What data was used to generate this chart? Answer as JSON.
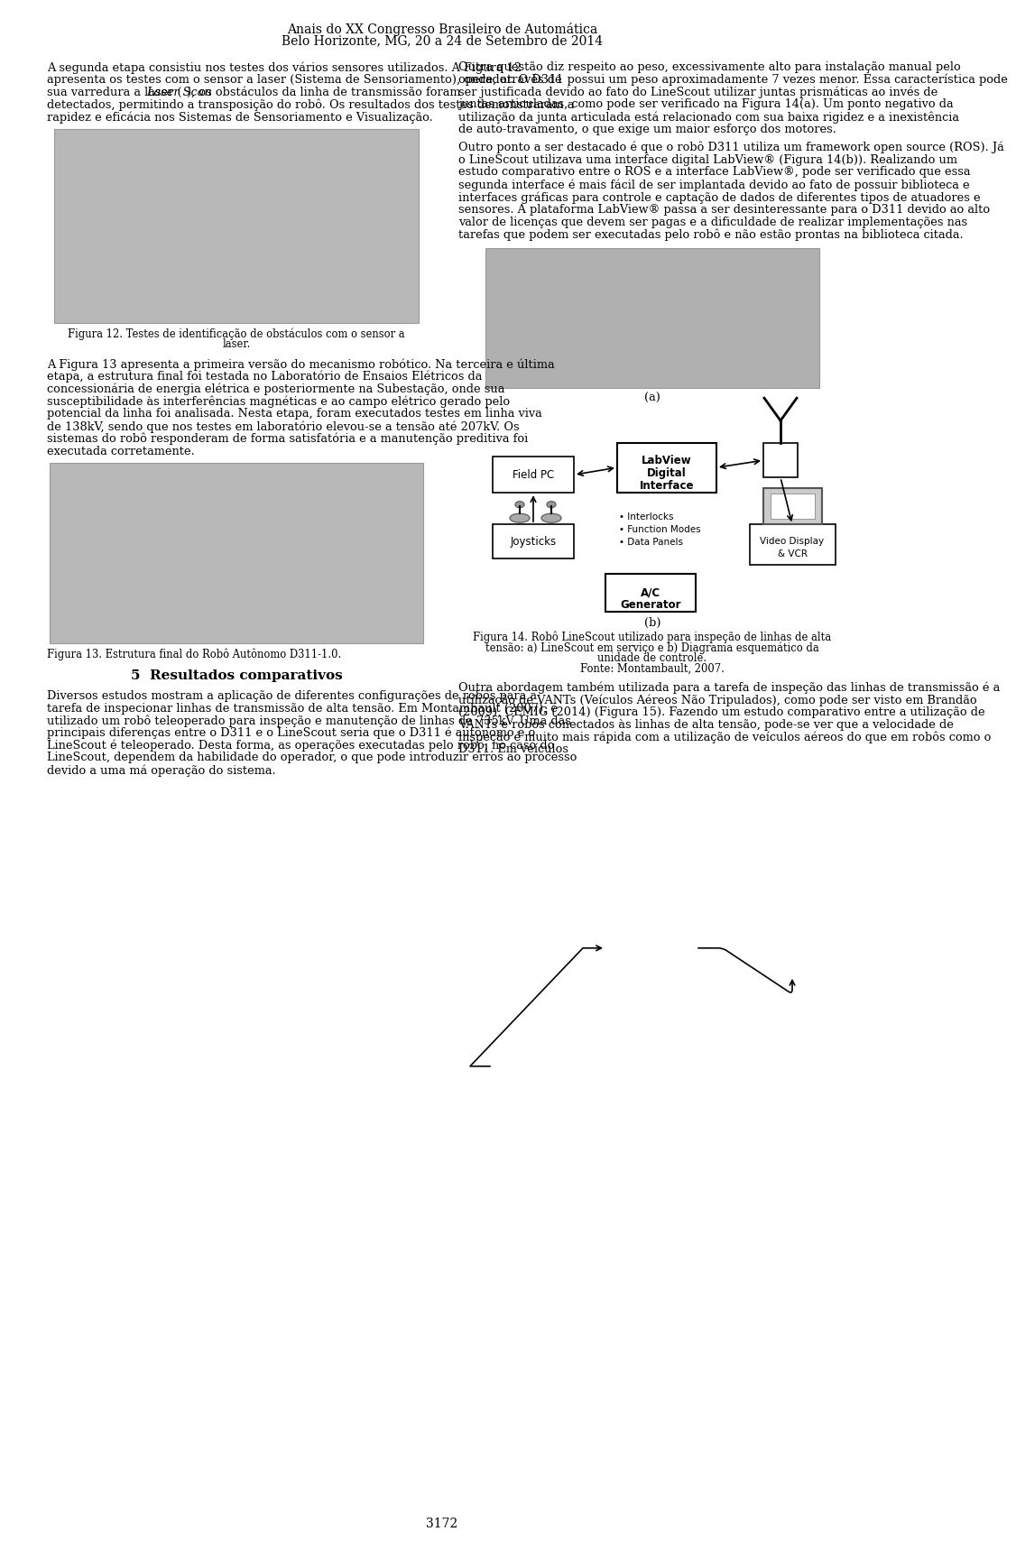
{
  "title_line1": "Anais do XX Congresso Brasileiro de Automática",
  "title_line2": "Belo Horizonte, MG, 20 a 24 de Setembro de 2014",
  "page_number": "3172",
  "background_color": "#ffffff",
  "col1_para1_parts": [
    {
      "text": "A segunda etapa consistiu nos testes dos vários sensores utilizados. A Figura 12 apresenta os testes com o sensor a laser (Sistema de Sensoriamento), onde, através de sua varredura a laser (",
      "italic": false
    },
    {
      "text": "Laser Scan",
      "italic": true
    },
    {
      "text": "), os obstáculos da linha de transmissão foram detectados, permitindo a transposição do robô. Os resultados dos testes demonstraram a rapidez e eficácia nos Sistemas de Sensoriamento e Visualização.",
      "italic": false
    }
  ],
  "fig12_caption_line1": "Figura 12. Testes de identificação de obstáculos com o sensor a",
  "fig12_caption_line2": "laser.",
  "col1_para2": "A Figura 13 apresenta a primeira versão do mecanismo robótico. Na terceira e última etapa, a estrutura final foi testada no Laboratório de Ensaios Elétricos da concessionária de energia elétrica e posteriormente na Subestação, onde sua susceptibilidade às interferências magnéticas e ao campo elétrico gerado pelo potencial da linha foi analisada. Nesta etapa, foram executados testes em linha viva de 138kV, sendo que nos testes em laboratório elevou-se a tensão até 207kV. Os sistemas do robô responderam de forma satisfatória e a manutenção preditiva foi executada corretamente.",
  "fig13_caption": "Figura 13. Estrutura final do Robô Autônomo D311-1.0.",
  "section5_title": "5  Resultados comparativos",
  "col1_para3": "Diversos estudos mostram a aplicação de diferentes configurações de robôs para a tarefa de inspecionar linhas de transmissão de alta tensão. Em Montambault (2007), é utilizado um robô teleoperado para inspeção e manutenção de linhas de 735kV. Uma das principais diferenças entre o D311 e o LineScout seria que o D311 é autônomo e o LineScout é teleoperado. Desta forma, as operações executadas pelo robô, no caso do LineScout, dependem da habilidade do operador, o que pode introduzir erros ao processo devido a uma má operação do sistema.",
  "col2_para1": "Outra questão diz respeito ao peso, excessivamente alto para instalação manual pelo operador. O D311 possui um peso aproximadamente 7 vezes menor. Essa característica pode ser justificada devido ao fato do LineScout utilizar juntas prismáticas ao invés de juntas articuladas, como pode ser verificado na Figura 14(a). Um ponto negativo da utilização da junta articulada está relacionado com sua baixa rigidez e a inexistência de auto-travamento, o que exige um maior esforço dos motores.",
  "col2_para2_parts": [
    {
      "text": "Outro ponto a ser destacado é que o robô D311 utiliza um ",
      "italic": false
    },
    {
      "text": "framework open source",
      "italic": true
    },
    {
      "text": " (",
      "italic": false
    },
    {
      "text": "ROS",
      "italic": true
    },
    {
      "text": "). Já o LineScout utilizava uma interface digital LabView",
      "italic": false
    },
    {
      "text": "®",
      "italic": false
    },
    {
      "text": " (Figura 14(b)). Realizando um estudo comparativo entre o ",
      "italic": false
    },
    {
      "text": "ROS",
      "italic": true
    },
    {
      "text": " e a interface LabView",
      "italic": false
    },
    {
      "text": "®",
      "italic": false
    },
    {
      "text": ", pode ser verificado que essa segunda interface é mais fácil de ser implantada devido ao fato de possuir biblioteca e interfaces gráficas para controle e captação de dados de diferentes tipos de atuadores e sensores. A plataforma LabView",
      "italic": false
    },
    {
      "text": "®",
      "italic": false
    },
    {
      "text": " passa a ser desinteressante para o D311 devido ao alto valor de licenças que devem ser pagas e a dificuldade de realizar implementações nas tarefas que podem ser executadas pelo robô e não estão prontas na biblioteca citada.",
      "italic": false
    }
  ],
  "fig14a_label": "(a)",
  "fig14b_label": "(b)",
  "fig14_caption_line1": "Figura 14. Robô LineScout utilizado para inspeção de linhas de alta",
  "fig14_caption_line2": "tensão: a) LineScout em serviço e b) Diagrama esquemático da",
  "fig14_caption_line3": "unidade de controle.",
  "fig14_caption_line4": "Fonte: Montambault, 2007.",
  "col2_para3": "Outra abordagem também utilizada para a tarefa de inspeção das linhas de transmissão é a utilização de VANTs (Veículos Aéreos Não Tripulados), como pode ser visto em Brandão (2009), CEMIG (2014) (Figura 15). Fazendo um estudo comparativo entre a utilização de VANTs e robôs conectados às linhas de alta tensão, pode-se ver que a velocidade de inspeção é muito mais rápida com a utilização de veículos aéreos do que em robôs como o D311. Em veículos"
}
